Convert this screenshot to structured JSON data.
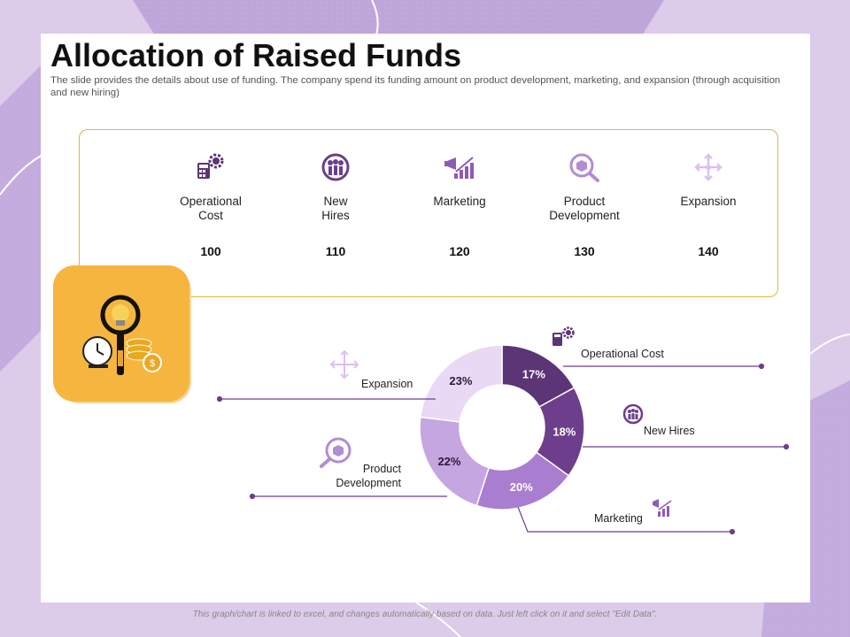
{
  "title": "Allocation of Raised Funds",
  "subtitle": "The slide provides the details about use of funding. The company spend its funding amount on product development, marketing, and expansion (through acquisition and new hiring)",
  "items": [
    {
      "label": "Operational Cost",
      "value": "100",
      "icon": "calculator-gear-icon"
    },
    {
      "label": "New Hires",
      "value": "110",
      "icon": "people-group-icon"
    },
    {
      "label": "Marketing",
      "value": "120",
      "icon": "megaphone-chart-icon"
    },
    {
      "label": "Product Development",
      "value": "130",
      "icon": "magnifier-box-icon"
    },
    {
      "label": "Expansion",
      "value": "140",
      "icon": "expand-arrows-icon"
    }
  ],
  "chart_data": {
    "type": "pie",
    "variant": "donut",
    "categories": [
      "Operational Cost",
      "New Hires",
      "Marketing",
      "Product Development",
      "Expansion"
    ],
    "values": [
      17,
      18,
      20,
      22,
      23
    ],
    "unit": "%",
    "data_labels": [
      "17%",
      "18%",
      "20%",
      "22%",
      "23%"
    ],
    "colors": [
      "#5b3576",
      "#6d3e8c",
      "#a97ed0",
      "#c5a6e1",
      "#ead9f5"
    ]
  },
  "footer": "This graph/chart is linked to excel, and changes automatically based on data. Just left click on it and select \"Edit Data\"."
}
